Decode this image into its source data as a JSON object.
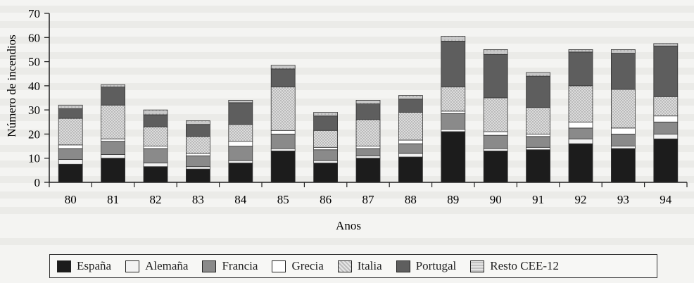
{
  "chart_data": {
    "type": "bar",
    "stacked": true,
    "xlabel": "Anos",
    "ylabel": "Número de incendios",
    "ylim": [
      0,
      70
    ],
    "yticks": [
      0,
      10,
      20,
      30,
      40,
      50,
      60,
      70
    ],
    "categories": [
      "80",
      "81",
      "82",
      "83",
      "84",
      "85",
      "86",
      "87",
      "88",
      "89",
      "90",
      "91",
      "92",
      "93",
      "94"
    ],
    "series": [
      {
        "name": "España",
        "color": "#1c1c1c",
        "values": [
          7.5,
          10,
          6.5,
          5.5,
          8,
          13,
          8,
          10,
          10.5,
          21,
          13,
          13.5,
          16,
          14,
          18
        ]
      },
      {
        "name": "Alemaña",
        "color": "#f2f2f2",
        "values": [
          2,
          1.5,
          1.5,
          1,
          1,
          1,
          1,
          1,
          1.5,
          1,
          1,
          1,
          2,
          1,
          2
        ]
      },
      {
        "name": "Francia",
        "color": "#8a8a8a",
        "values": [
          4.5,
          5.5,
          6,
          4.5,
          6,
          6,
          4.5,
          3,
          4,
          6.5,
          5.5,
          4.5,
          4.5,
          5,
          5
        ]
      },
      {
        "name": "Grecia",
        "color": "#ffffff",
        "values": [
          1.5,
          1,
          1,
          1,
          2,
          1.5,
          1,
          1,
          1.5,
          1,
          1.5,
          1,
          2.5,
          2.5,
          2.5
        ]
      },
      {
        "name": "Italia",
        "color": "#c8c8c8",
        "values": [
          11,
          14,
          8,
          7,
          7,
          18,
          7,
          11,
          11.5,
          10,
          14,
          11,
          15,
          16,
          8
        ]
      },
      {
        "name": "Portugal",
        "color": "#5e5e5e",
        "values": [
          4,
          7.5,
          5,
          5,
          9,
          7.5,
          6,
          6.5,
          5.5,
          19,
          18,
          13,
          14,
          15,
          21
        ]
      },
      {
        "name": "Resto CEE-12",
        "color": "#d9d9d9",
        "values": [
          1.5,
          1,
          2,
          1.5,
          1,
          1.5,
          1.5,
          1.5,
          1.5,
          2,
          2,
          1.5,
          1,
          1.5,
          1
        ]
      }
    ]
  }
}
